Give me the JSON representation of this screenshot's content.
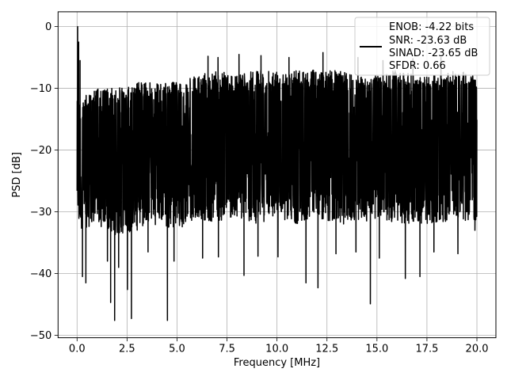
{
  "chart_data": {
    "type": "line",
    "xlabel": "Frequency [MHz]",
    "ylabel": "PSD [dB]",
    "xlim": [
      -0.95,
      20.95
    ],
    "ylim": [
      -50.4,
      2.4
    ],
    "xticks": [
      0.0,
      2.5,
      5.0,
      7.5,
      10.0,
      12.5,
      15.0,
      17.5,
      20.0
    ],
    "xtick_labels": [
      "0.0",
      "2.5",
      "5.0",
      "7.5",
      "10.0",
      "12.5",
      "15.0",
      "17.5",
      "20.0"
    ],
    "yticks": [
      0,
      -10,
      -20,
      -30,
      -40,
      -50
    ],
    "ytick_labels": [
      "0",
      "−10",
      "−20",
      "−30",
      "−40",
      "−50"
    ],
    "grid": true,
    "legend_position": "upper-right",
    "series_color": "#000000",
    "series": [
      {
        "name": "ENOB: -4.22 bits\nSNR: -23.63 dB\nSINAD: -23.65 dB\nSFDR: 0.66",
        "legend_lines": [
          "ENOB: -4.22 bits",
          "SNR: -23.63 dB",
          "SINAD: -23.65 dB",
          "SFDR: 0.66"
        ],
        "x_range": [
          0.0,
          20.0
        ],
        "peak": {
          "x": 0.03,
          "y": 0.0
        },
        "envelope": {
          "x": [
            0.0,
            1.0,
            2.0,
            3.0,
            4.0,
            5.0,
            6.0,
            7.0,
            8.0,
            9.0,
            10.0,
            11.0,
            12.0,
            13.0,
            14.0,
            15.0,
            16.0,
            17.0,
            18.0,
            19.0,
            20.0
          ],
          "upper": [
            -12,
            -10,
            -10,
            -9,
            -9,
            -9,
            -8,
            -7,
            -8,
            -7,
            -7,
            -7,
            -7,
            -7,
            -8,
            -8,
            -7,
            -8,
            -8,
            -7,
            -8
          ],
          "lower": [
            -33,
            -32,
            -34,
            -33,
            -32,
            -33,
            -31,
            -32,
            -31,
            -32,
            -31,
            -32,
            -31,
            -32,
            -32,
            -31,
            -32,
            -32,
            -32,
            -31,
            -32
          ]
        },
        "dips": [
          {
            "x": 0.27,
            "y": -40.5
          },
          {
            "x": 0.44,
            "y": -41.5
          },
          {
            "x": 1.52,
            "y": -38.0
          },
          {
            "x": 1.68,
            "y": -44.7
          },
          {
            "x": 1.88,
            "y": -47.6
          },
          {
            "x": 2.08,
            "y": -39.0
          },
          {
            "x": 2.52,
            "y": -42.6
          },
          {
            "x": 2.72,
            "y": -47.3
          },
          {
            "x": 3.55,
            "y": -36.5
          },
          {
            "x": 4.52,
            "y": -47.6
          },
          {
            "x": 4.85,
            "y": -38.0
          },
          {
            "x": 6.28,
            "y": -37.5
          },
          {
            "x": 7.07,
            "y": -37.3
          },
          {
            "x": 8.35,
            "y": -40.3
          },
          {
            "x": 9.05,
            "y": -37.2
          },
          {
            "x": 10.05,
            "y": -37.3
          },
          {
            "x": 11.45,
            "y": -41.5
          },
          {
            "x": 12.05,
            "y": -42.3
          },
          {
            "x": 12.95,
            "y": -36.8
          },
          {
            "x": 13.95,
            "y": -36.5
          },
          {
            "x": 14.67,
            "y": -44.9
          },
          {
            "x": 15.12,
            "y": -37.5
          },
          {
            "x": 16.42,
            "y": -40.8
          },
          {
            "x": 17.15,
            "y": -40.5
          },
          {
            "x": 17.85,
            "y": -36.5
          },
          {
            "x": 19.05,
            "y": -36.8
          },
          {
            "x": 19.9,
            "y": -33.0
          }
        ],
        "spikes": [
          {
            "x": 0.08,
            "y": -2.5
          },
          {
            "x": 0.15,
            "y": -5.5
          },
          {
            "x": 6.55,
            "y": -4.8
          },
          {
            "x": 7.05,
            "y": -5.0
          },
          {
            "x": 8.1,
            "y": -4.5
          },
          {
            "x": 9.2,
            "y": -4.7
          },
          {
            "x": 10.6,
            "y": -5.0
          },
          {
            "x": 12.3,
            "y": -4.2
          },
          {
            "x": 14.05,
            "y": -5.0
          },
          {
            "x": 15.3,
            "y": -5.5
          },
          {
            "x": 16.8,
            "y": -5.2
          },
          {
            "x": 18.2,
            "y": -5.0
          }
        ]
      }
    ]
  }
}
